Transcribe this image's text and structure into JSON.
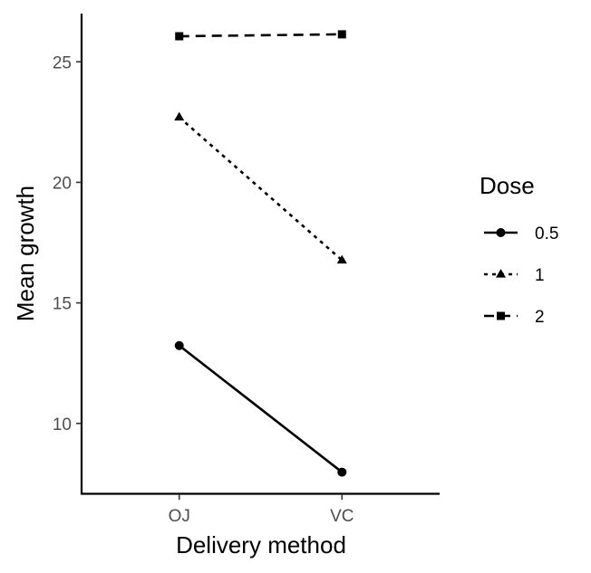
{
  "chart_data": {
    "type": "line",
    "categories": [
      "OJ",
      "VC"
    ],
    "xlabel": "Delivery method",
    "ylabel": "Mean growth",
    "ylim": [
      7.1,
      27.0
    ],
    "yticks": [
      10,
      15,
      20,
      25
    ],
    "grid": false,
    "legend": {
      "title": "Dose",
      "placement": "right"
    },
    "series": [
      {
        "name": "0.5",
        "values": [
          13.23,
          7.98
        ],
        "linetype": "solid",
        "marker": "circle"
      },
      {
        "name": "1",
        "values": [
          22.7,
          16.77
        ],
        "linetype": "dotted",
        "marker": "triangle"
      },
      {
        "name": "2",
        "values": [
          26.06,
          26.14
        ],
        "linetype": "dashed",
        "marker": "square"
      }
    ]
  }
}
